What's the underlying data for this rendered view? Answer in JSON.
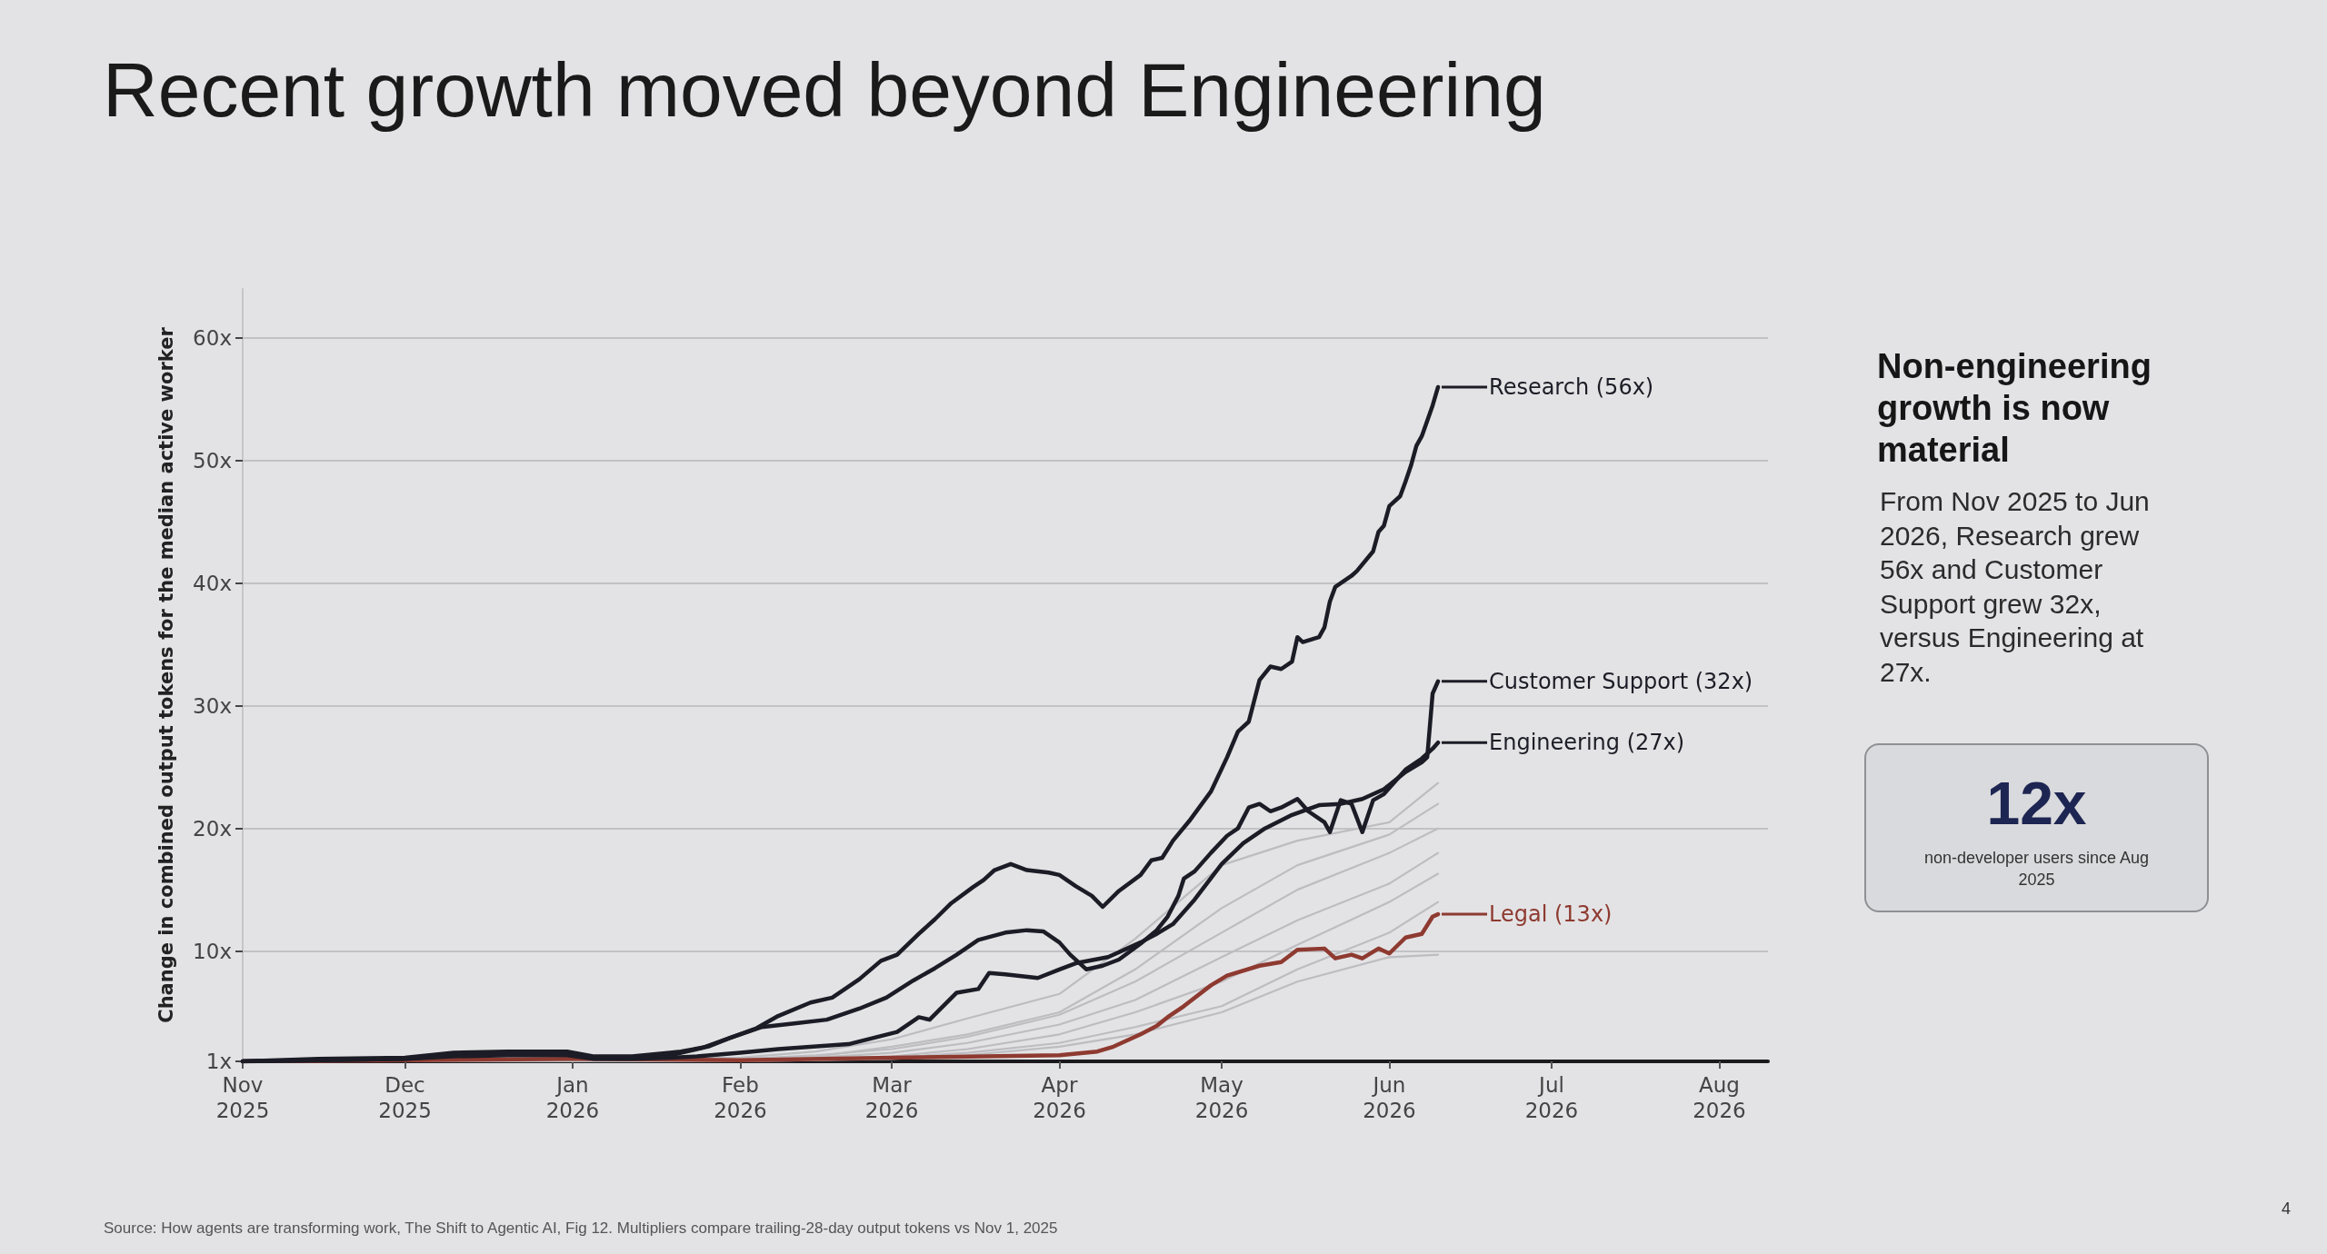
{
  "chart_data": {
    "type": "line",
    "title": "Recent growth moved beyond Engineering",
    "ylabel": "Change in combined output tokens for the median active worker",
    "xlim": [
      "2025-11-01",
      "2026-08-10"
    ],
    "xticks": [
      {
        "value": "2025-11-01",
        "label": "Nov 2025"
      },
      {
        "value": "2025-12-01",
        "label": "Dec 2025"
      },
      {
        "value": "2026-01-01",
        "label": "Jan 2026"
      },
      {
        "value": "2026-02-01",
        "label": "Feb 2026"
      },
      {
        "value": "2026-03-01",
        "label": "Mar 2026"
      },
      {
        "value": "2026-04-01",
        "label": "Apr 2026"
      },
      {
        "value": "2026-05-01",
        "label": "May 2026"
      },
      {
        "value": "2026-06-01",
        "label": "Jun 2026"
      },
      {
        "value": "2026-07-01",
        "label": "Jul 2026"
      },
      {
        "value": "2026-08-01",
        "label": "Aug 2026"
      }
    ],
    "ylim": [
      1,
      64
    ],
    "yticks": [
      {
        "value": 1,
        "label": "1x"
      },
      {
        "value": 10,
        "label": "10x"
      },
      {
        "value": 20,
        "label": "20x"
      },
      {
        "value": 30,
        "label": "30x"
      },
      {
        "value": 40,
        "label": "40x"
      },
      {
        "value": 50,
        "label": "50x"
      },
      {
        "value": 60,
        "label": "60x"
      }
    ],
    "grid": "y",
    "legend": "right",
    "series": [
      {
        "color": "#bdbdc1",
        "x": [
          "2025-11-01",
          "2026-01-01",
          "2026-02-01",
          "2026-02-15",
          "2026-03-01",
          "2026-03-15",
          "2026-04-01",
          "2026-04-15",
          "2026-05-01",
          "2026-05-15",
          "2026-06-01",
          "2026-06-10"
        ],
        "values": [
          1,
          1.1,
          1.3,
          1.8,
          2.8,
          4.5,
          6.5,
          11,
          17,
          19,
          20.5,
          23.7
        ]
      },
      {
        "color": "#bdbdc1",
        "x": [
          "2025-11-01",
          "2026-01-01",
          "2026-02-01",
          "2026-02-15",
          "2026-03-01",
          "2026-03-15",
          "2026-04-01",
          "2026-04-15",
          "2026-05-01",
          "2026-05-15",
          "2026-06-01",
          "2026-06-10"
        ],
        "values": [
          1,
          1.1,
          1.2,
          1.4,
          2.2,
          3.2,
          5,
          8.5,
          13.5,
          17,
          19.5,
          22
        ]
      },
      {
        "color": "#bdbdc1",
        "x": [
          "2025-11-01",
          "2026-01-01",
          "2026-02-01",
          "2026-02-15",
          "2026-03-01",
          "2026-03-15",
          "2026-04-01",
          "2026-04-15",
          "2026-05-01",
          "2026-05-15",
          "2026-06-01",
          "2026-06-10"
        ],
        "values": [
          1,
          1.1,
          1.2,
          1.5,
          2,
          3,
          4.8,
          7.5,
          11.5,
          15,
          18,
          20
        ]
      },
      {
        "color": "#bdbdc1",
        "x": [
          "2025-11-01",
          "2026-01-01",
          "2026-02-01",
          "2026-02-15",
          "2026-03-01",
          "2026-03-15",
          "2026-04-01",
          "2026-04-15",
          "2026-05-01",
          "2026-05-15",
          "2026-06-01",
          "2026-06-10"
        ],
        "values": [
          1,
          1,
          1.1,
          1.3,
          1.7,
          2.5,
          4,
          6,
          9.5,
          12.5,
          15.5,
          18
        ]
      },
      {
        "color": "#bdbdc1",
        "x": [
          "2025-11-01",
          "2026-01-01",
          "2026-02-01",
          "2026-02-15",
          "2026-03-01",
          "2026-03-15",
          "2026-04-01",
          "2026-04-15",
          "2026-05-01",
          "2026-05-15",
          "2026-06-01",
          "2026-06-10"
        ],
        "values": [
          1,
          1,
          1.1,
          1.2,
          1.4,
          2,
          3.2,
          5,
          7.5,
          10.5,
          14,
          16.3
        ]
      },
      {
        "color": "#bdbdc1",
        "x": [
          "2025-11-01",
          "2026-01-01",
          "2026-02-01",
          "2026-02-15",
          "2026-03-01",
          "2026-03-15",
          "2026-04-01",
          "2026-04-15",
          "2026-05-01",
          "2026-05-15",
          "2026-06-01",
          "2026-06-10"
        ],
        "values": [
          1,
          1,
          1.1,
          1.1,
          1.3,
          1.7,
          2.5,
          3.8,
          5.5,
          8.5,
          11.5,
          14
        ]
      },
      {
        "color": "#bdbdc1",
        "x": [
          "2025-11-01",
          "2026-01-01",
          "2026-02-01",
          "2026-02-15",
          "2026-03-01",
          "2026-03-15",
          "2026-04-01",
          "2026-04-15",
          "2026-05-01",
          "2026-05-15",
          "2026-06-01",
          "2026-06-10"
        ],
        "values": [
          1,
          1,
          1,
          1.1,
          1.2,
          1.5,
          2.2,
          3.2,
          5,
          7.5,
          9.5,
          9.7
        ]
      },
      {
        "name": "Legal (13x)",
        "color": "#8e3a30",
        "x": [
          "2025-11-01",
          "2025-12-01",
          "2026-01-01",
          "2026-02-01",
          "2026-03-01",
          "2026-04-01",
          "2026-04-08",
          "2026-04-11",
          "2026-04-16",
          "2026-04-19",
          "2026-04-21",
          "2026-04-24",
          "2026-04-29",
          "2026-05-02",
          "2026-05-08",
          "2026-05-12",
          "2026-05-15",
          "2026-05-20",
          "2026-05-22",
          "2026-05-25",
          "2026-05-27",
          "2026-05-30",
          "2026-06-01",
          "2026-06-04",
          "2026-06-07",
          "2026-06-09",
          "2026-06-10"
        ],
        "values": [
          1,
          1.1,
          1.2,
          1.1,
          1.3,
          1.5,
          1.8,
          2.2,
          3.2,
          3.9,
          4.6,
          5.5,
          7.2,
          8,
          8.8,
          9.1,
          10.1,
          10.2,
          9.4,
          9.7,
          9.4,
          10.2,
          9.8,
          11.1,
          11.4,
          12.8,
          13
        ]
      },
      {
        "name": "Engineering (27x)",
        "color": "#1c1c26",
        "x": [
          "2025-11-01",
          "2025-11-15",
          "2025-12-01",
          "2025-12-10",
          "2025-12-20",
          "2025-12-31",
          "2026-01-05",
          "2026-01-12",
          "2026-01-19",
          "2026-01-25",
          "2026-01-30",
          "2026-02-05",
          "2026-02-11",
          "2026-02-17",
          "2026-02-23",
          "2026-02-28",
          "2026-03-05",
          "2026-03-09",
          "2026-03-13",
          "2026-03-17",
          "2026-03-22",
          "2026-03-26",
          "2026-03-29",
          "2026-04-01",
          "2026-04-03",
          "2026-04-06",
          "2026-04-09",
          "2026-04-12",
          "2026-04-16",
          "2026-04-19",
          "2026-04-21",
          "2026-04-23",
          "2026-04-24",
          "2026-04-26",
          "2026-04-29",
          "2026-05-02",
          "2026-05-04",
          "2026-05-06",
          "2026-05-08",
          "2026-05-10",
          "2026-05-12",
          "2026-05-15",
          "2026-05-17",
          "2026-05-20",
          "2026-05-21",
          "2026-05-23",
          "2026-05-25",
          "2026-05-27",
          "2026-05-29",
          "2026-05-31",
          "2026-06-04",
          "2026-06-07",
          "2026-06-09",
          "2026-06-10"
        ],
        "values": [
          1,
          1.1,
          1.2,
          1.5,
          1.6,
          1.6,
          1.3,
          1.3,
          1.5,
          2.1,
          2.9,
          3.8,
          4.1,
          4.4,
          5.3,
          6.2,
          7.6,
          8.6,
          9.7,
          10.9,
          11.5,
          11.7,
          11.6,
          10.7,
          9.7,
          8.5,
          8.8,
          9.3,
          10.6,
          11.7,
          12.8,
          14.5,
          15.9,
          16.5,
          18,
          19.4,
          20,
          21.7,
          22,
          21.4,
          21.7,
          22.4,
          21.4,
          20.5,
          19.7,
          22.3,
          22,
          19.7,
          22.3,
          22.8,
          24.8,
          25.7,
          26.5,
          27
        ]
      },
      {
        "name": "Customer Support (32x)",
        "color": "#1c1c26",
        "x": [
          "2025-11-01",
          "2025-11-15",
          "2025-12-01",
          "2025-12-10",
          "2025-12-20",
          "2025-12-31",
          "2026-01-05",
          "2026-01-12",
          "2026-01-19",
          "2026-01-24",
          "2026-02-01",
          "2026-02-08",
          "2026-02-21",
          "2026-03-02",
          "2026-03-06",
          "2026-03-08",
          "2026-03-13",
          "2026-03-17",
          "2026-03-19",
          "2026-03-22",
          "2026-03-28",
          "2026-04-01",
          "2026-04-04",
          "2026-04-10",
          "2026-04-16",
          "2026-04-19",
          "2026-04-22",
          "2026-04-26",
          "2026-05-01",
          "2026-05-05",
          "2026-05-09",
          "2026-05-14",
          "2026-05-19",
          "2026-05-23",
          "2026-05-27",
          "2026-05-31",
          "2026-06-04",
          "2026-06-07",
          "2026-06-08",
          "2026-06-09",
          "2026-06-10"
        ],
        "values": [
          1,
          1.1,
          1.2,
          1.4,
          1.5,
          1.5,
          1.2,
          1.2,
          1.3,
          1.4,
          1.7,
          2,
          2.4,
          3.4,
          4.6,
          4.4,
          6.6,
          6.9,
          8.2,
          8.1,
          7.8,
          8.5,
          9,
          9.5,
          10.7,
          11.4,
          12.2,
          14.2,
          17.1,
          18.8,
          20,
          21.1,
          21.9,
          22,
          22.4,
          23.2,
          24.6,
          25.4,
          25.8,
          31,
          32
        ]
      },
      {
        "name": "Research (56x)",
        "color": "#1c1c26",
        "x": [
          "2025-11-01",
          "2025-11-15",
          "2025-12-01",
          "2025-12-10",
          "2025-12-20",
          "2025-12-31",
          "2026-01-05",
          "2026-01-12",
          "2026-01-19",
          "2026-01-21",
          "2026-01-26",
          "2026-01-30",
          "2026-02-04",
          "2026-02-08",
          "2026-02-14",
          "2026-02-18",
          "2026-02-23",
          "2026-02-27",
          "2026-03-02",
          "2026-03-06",
          "2026-03-09",
          "2026-03-12",
          "2026-03-16",
          "2026-03-18",
          "2026-03-20",
          "2026-03-23",
          "2026-03-26",
          "2026-03-30",
          "2026-04-01",
          "2026-04-04",
          "2026-04-07",
          "2026-04-09",
          "2026-04-12",
          "2026-04-16",
          "2026-04-18",
          "2026-04-20",
          "2026-04-22",
          "2026-04-25",
          "2026-04-29",
          "2026-05-02",
          "2026-05-04",
          "2026-05-06",
          "2026-05-08",
          "2026-05-10",
          "2026-05-12",
          "2026-05-14",
          "2026-05-15",
          "2026-05-16",
          "2026-05-19",
          "2026-05-20",
          "2026-05-21",
          "2026-05-22",
          "2026-05-25",
          "2026-05-26",
          "2026-05-29",
          "2026-05-30",
          "2026-05-31",
          "2026-06-01",
          "2026-06-03",
          "2026-06-04",
          "2026-06-05",
          "2026-06-06",
          "2026-06-07",
          "2026-06-09",
          "2026-06-10"
        ],
        "values": [
          1,
          1.2,
          1.3,
          1.7,
          1.8,
          1.8,
          1.4,
          1.4,
          1.7,
          1.8,
          2.2,
          2.9,
          3.7,
          4.7,
          5.8,
          6.2,
          7.7,
          9.2,
          9.7,
          11.4,
          12.6,
          13.9,
          15.2,
          15.8,
          16.6,
          17.1,
          16.6,
          16.4,
          16.2,
          15.3,
          14.5,
          13.6,
          14.9,
          16.2,
          17.4,
          17.6,
          19,
          20.6,
          23,
          25.8,
          27.9,
          28.7,
          32.1,
          33.2,
          33,
          33.6,
          35.6,
          35.2,
          35.6,
          36.4,
          38.5,
          39.7,
          40.6,
          41,
          42.6,
          44.2,
          44.7,
          46.3,
          47.1,
          48.3,
          49.6,
          51.2,
          52,
          54.5,
          56
        ]
      }
    ],
    "annotations": [
      "Non-engineering growth is now material",
      "From Nov 2025 to Jun 2026, Research grew 56x and Customer Support grew 32x, versus Engineering at 27x.",
      "12x",
      "non-developer users since Aug 2025",
      "Source: How agents are transforming work, The Shift to Agentic AI, Fig 12. Multipliers compare trailing-28-day output tokens vs Nov 1, 2025",
      "4"
    ]
  }
}
